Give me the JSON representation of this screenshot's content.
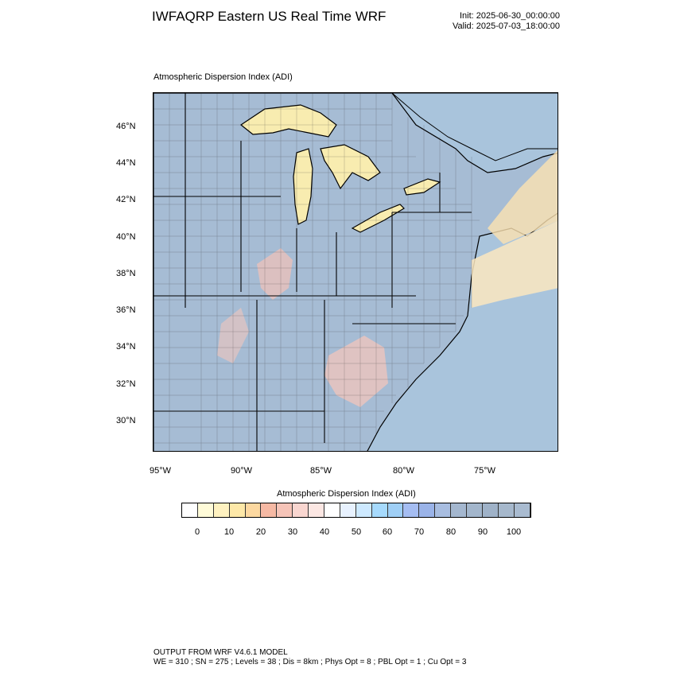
{
  "header": {
    "title": "IWFAQRP Eastern US Real Time WRF",
    "init": "Init: 2025-06-30_00:00:00",
    "valid": "Valid: 2025-07-03_18:00:00"
  },
  "map": {
    "plot_label": "Atmospheric Dispersion Index   (ADI)",
    "lat_ticks": [
      "46°N",
      "44°N",
      "42°N",
      "40°N",
      "38°N",
      "36°N",
      "34°N",
      "32°N",
      "30°N"
    ],
    "lon_ticks": [
      "95°W",
      "90°W",
      "85°W",
      "80°W",
      "75°W"
    ],
    "colors": {
      "water": "#a9c4dc",
      "land_high": "#a9c4dc",
      "lake_low": "#f8ecb0",
      "ocean_low": "#fce8c0"
    }
  },
  "colorbar": {
    "title": "Atmospheric Dispersion Index  (ADI)",
    "labels": [
      "0",
      "10",
      "20",
      "30",
      "40",
      "50",
      "60",
      "70",
      "80",
      "90",
      "100"
    ],
    "colors": [
      "#ffffff",
      "#fffbd8",
      "#fff2c0",
      "#fde8a8",
      "#fcd8a0",
      "#f6b9a4",
      "#f6c4b8",
      "#f9d6d0",
      "#fce7e3",
      "#ffffff",
      "#e8f2ff",
      "#cde9ff",
      "#a6dafd",
      "#9fcff6",
      "#a5bdf2",
      "#9ab3e8",
      "#a8bde0",
      "#a4b7cf",
      "#a3b6cc",
      "#9fb2c8",
      "#a6b8cc",
      "#a9bbd0"
    ]
  },
  "footer": {
    "line1": "OUTPUT FROM WRF V4.6.1 MODEL",
    "line2": "WE = 310 ; SN = 275 ; Levels = 38 ; Dis = 8km ; Phys Opt = 8 ; PBL Opt = 1 ; Cu Opt = 3"
  }
}
